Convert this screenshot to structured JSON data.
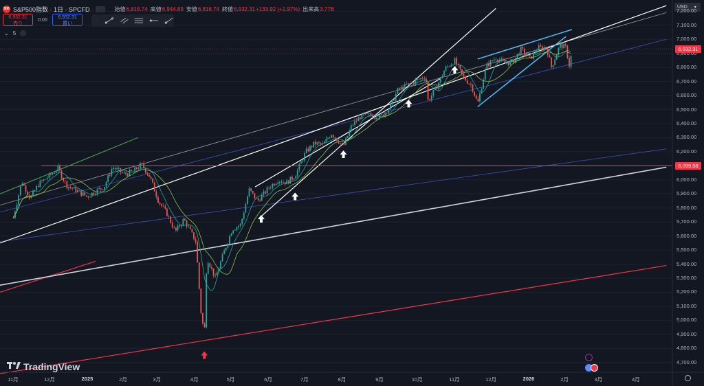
{
  "header": {
    "symbol_icon": "500",
    "title": "S&P500指数 · 1日 · SPCFD",
    "ohlc": [
      {
        "key": "始値",
        "value": "6,816.74"
      },
      {
        "key": "高値",
        "value": "6,944.89"
      },
      {
        "key": "安値",
        "value": "6,816.74"
      },
      {
        "key": "終値",
        "value": "6,932.31"
      },
      {
        "key": "",
        "value": "+133.92 (+1.97%)"
      },
      {
        "key": "出来高",
        "value": "3.77B"
      }
    ]
  },
  "trade": {
    "sell_price": "6,932.31",
    "sell_label": "売り",
    "spread": "0.00",
    "buy_price": "6,932.31",
    "buy_label": "買い"
  },
  "indicators": {
    "collapse_icon": "chevron-down-icon",
    "count": "5"
  },
  "currency": "USD",
  "branding": "TradingView",
  "price_tags": {
    "last": "6,932.31",
    "horizontal_line": "6,099.58"
  },
  "colors": {
    "background": "#131722",
    "up_candle": "#26a69a",
    "down_candle": "#ef5350",
    "accent_red": "#f23645",
    "white_lines": "#ffffff",
    "cyan_lines": "#4fc3f7",
    "blue_lines": "#3f51b5",
    "green_line": "#4caf50",
    "ma_line": "#8bc34a"
  },
  "chart_data": {
    "type": "candlestick",
    "y_ticks": [
      4700,
      4800,
      4900,
      5000,
      5100,
      5200,
      5300,
      5400,
      5500,
      5600,
      5700,
      5800,
      5900,
      6000,
      6100,
      6200,
      6300,
      6400,
      6500,
      6600,
      6700,
      6800,
      6900,
      7000,
      7100,
      7200
    ],
    "y_tick_labels": [
      "4,700.00",
      "4,800.00",
      "4,900.00",
      "5,000.00",
      "5,100.00",
      "5,200.00",
      "5,300.00",
      "5,400.00",
      "5,500.00",
      "5,600.00",
      "5,700.00",
      "5,800.00",
      "5,900.00",
      "6,000.00",
      "6,100.00",
      "6,200.00",
      "6,300.00",
      "6,400.00",
      "6,500.00",
      "6,600.00",
      "6,700.00",
      "6,800.00",
      "6,900.00",
      "7,000.00",
      "7,100.00",
      "7,200.00"
    ],
    "x_labels": [
      "11月",
      "12月",
      "2025",
      "2月",
      "3月",
      "4月",
      "5月",
      "6月",
      "7月",
      "8月",
      "9月",
      "10月",
      "11月",
      "12月",
      "2026",
      "2月",
      "3月",
      "4月"
    ],
    "ylim": [
      4640,
      7280
    ],
    "close_path": [
      [
        "2024-11-01",
        5730
      ],
      [
        "2024-11-08",
        5990
      ],
      [
        "2024-11-15",
        5870
      ],
      [
        "2024-11-22",
        5970
      ],
      [
        "2024-12-01",
        6030
      ],
      [
        "2024-12-08",
        6080
      ],
      [
        "2024-12-15",
        5960
      ],
      [
        "2024-12-22",
        5930
      ],
      [
        "2025-01-01",
        5880
      ],
      [
        "2025-01-08",
        5920
      ],
      [
        "2025-01-15",
        5950
      ],
      [
        "2025-01-22",
        6090
      ],
      [
        "2025-02-01",
        6040
      ],
      [
        "2025-02-08",
        6060
      ],
      [
        "2025-02-15",
        6110
      ],
      [
        "2025-02-22",
        6020
      ],
      [
        "2025-03-01",
        5850
      ],
      [
        "2025-03-08",
        5760
      ],
      [
        "2025-03-15",
        5630
      ],
      [
        "2025-03-22",
        5720
      ],
      [
        "2025-04-01",
        5560
      ],
      [
        "2025-04-05",
        5070
      ],
      [
        "2025-04-08",
        4900
      ],
      [
        "2025-04-10",
        5450
      ],
      [
        "2025-04-17",
        5300
      ],
      [
        "2025-04-24",
        5480
      ],
      [
        "2025-05-01",
        5650
      ],
      [
        "2025-05-08",
        5680
      ],
      [
        "2025-05-15",
        5930
      ],
      [
        "2025-05-22",
        5850
      ],
      [
        "2025-06-01",
        5950
      ],
      [
        "2025-06-08",
        6000
      ],
      [
        "2025-06-15",
        5980
      ],
      [
        "2025-06-22",
        6030
      ],
      [
        "2025-07-01",
        6200
      ],
      [
        "2025-07-08",
        6260
      ],
      [
        "2025-07-15",
        6250
      ],
      [
        "2025-07-22",
        6330
      ],
      [
        "2025-08-01",
        6240
      ],
      [
        "2025-08-08",
        6390
      ],
      [
        "2025-08-15",
        6450
      ],
      [
        "2025-08-22",
        6460
      ],
      [
        "2025-09-01",
        6450
      ],
      [
        "2025-09-08",
        6510
      ],
      [
        "2025-09-15",
        6640
      ],
      [
        "2025-09-22",
        6670
      ],
      [
        "2025-10-01",
        6710
      ],
      [
        "2025-10-08",
        6740
      ],
      [
        "2025-10-10",
        6560
      ],
      [
        "2025-10-17",
        6660
      ],
      [
        "2025-10-24",
        6790
      ],
      [
        "2025-11-01",
        6850
      ],
      [
        "2025-11-08",
        6730
      ],
      [
        "2025-11-15",
        6670
      ],
      [
        "2025-11-20",
        6540
      ],
      [
        "2025-11-27",
        6810
      ],
      [
        "2025-12-05",
        6870
      ],
      [
        "2025-12-12",
        6830
      ],
      [
        "2025-12-19",
        6840
      ],
      [
        "2025-12-26",
        6930
      ],
      [
        "2026-01-02",
        6860
      ],
      [
        "2026-01-09",
        6940
      ],
      [
        "2026-01-16",
        6940
      ],
      [
        "2026-01-20",
        6800
      ],
      [
        "2026-01-27",
        6960
      ],
      [
        "2026-02-01",
        6940
      ],
      [
        "2026-02-04",
        6800
      ],
      [
        "2026-02-06",
        6932
      ]
    ],
    "horizontal_line": 6099.58,
    "last_close": 6932.31
  }
}
